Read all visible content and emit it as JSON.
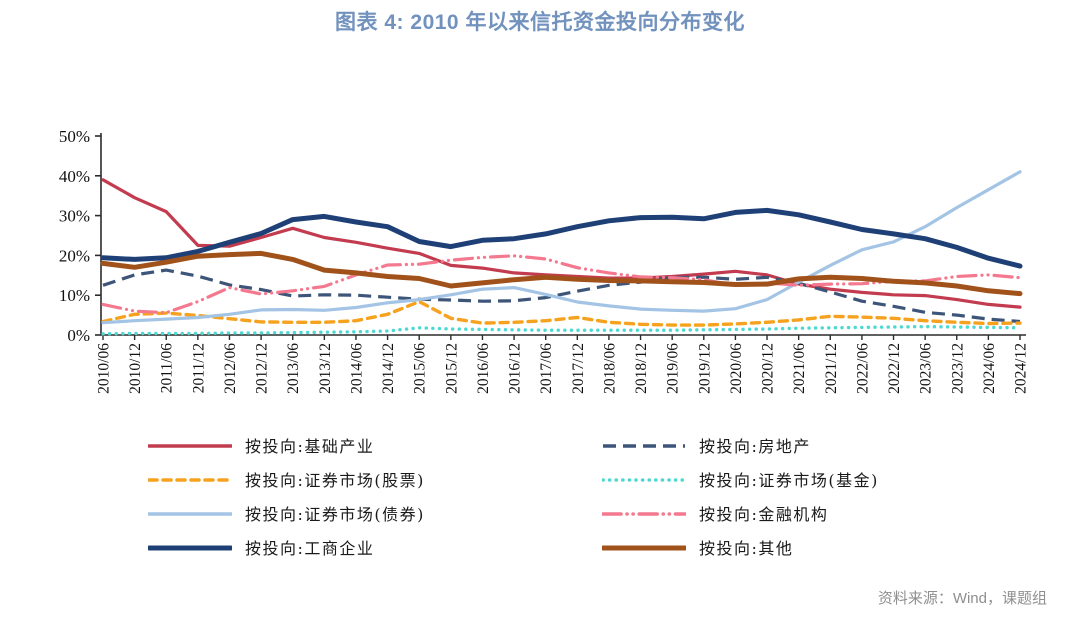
{
  "title": "图表 4: 2010 年以来信托资金投向分布变化",
  "source_note": "资料来源：Wind，课题组",
  "colors": {
    "title": "#7292BE",
    "axis": "#2b2b2b",
    "tick_text": "#111111",
    "source_text": "#8f8f8f",
    "background": "#ffffff"
  },
  "chart_data": {
    "type": "line",
    "title": "图表 4: 2010 年以来信托资金投向分布变化",
    "xlabel": "",
    "ylabel": "",
    "ylim": [
      0,
      50
    ],
    "yticks": [
      "0%",
      "10%",
      "20%",
      "30%",
      "40%",
      "50%"
    ],
    "grid": false,
    "legend_position": "bottom-two-columns",
    "categories": [
      "2010/06",
      "2010/12",
      "2011/06",
      "2011/12",
      "2012/06",
      "2012/12",
      "2013/06",
      "2013/12",
      "2014/06",
      "2014/12",
      "2015/06",
      "2015/12",
      "2016/06",
      "2016/12",
      "2017/06",
      "2017/12",
      "2018/06",
      "2018/12",
      "2019/06",
      "2019/12",
      "2020/06",
      "2020/12",
      "2021/06",
      "2021/12",
      "2022/06",
      "2022/12",
      "2023/06",
      "2023/12",
      "2024/06",
      "2024/12"
    ],
    "series": [
      {
        "name": "按投向:基础产业",
        "color": "#C23B4E",
        "style": "solid",
        "width": 3.2,
        "dash": "",
        "cap": "round",
        "values": [
          39.0,
          34.5,
          31.0,
          22.5,
          22.3,
          24.5,
          26.8,
          24.5,
          23.3,
          21.8,
          20.5,
          17.5,
          16.8,
          15.6,
          15.1,
          14.7,
          14.3,
          14.3,
          14.7,
          15.3,
          16.0,
          15.1,
          12.8,
          11.5,
          10.7,
          10.1,
          9.9,
          8.9,
          7.7,
          7.0
        ]
      },
      {
        "name": "按投向:房地产",
        "color": "#3D5578",
        "style": "dashed",
        "width": 3.2,
        "dash": "13 7",
        "cap": "butt",
        "values": [
          12.5,
          15.1,
          16.3,
          14.8,
          12.6,
          11.4,
          9.8,
          10.1,
          10.0,
          9.5,
          9.0,
          8.8,
          8.5,
          8.6,
          9.4,
          11.0,
          12.5,
          13.3,
          14.5,
          14.5,
          14.0,
          14.5,
          13.0,
          10.8,
          8.5,
          7.2,
          5.7,
          5.0,
          4.0,
          3.4
        ]
      },
      {
        "name": "按投向:证券市场(股票)",
        "color": "#F6A21F",
        "style": "dashed",
        "width": 3.4,
        "dash": "8 6",
        "cap": "round",
        "values": [
          3.4,
          5.2,
          5.5,
          4.9,
          4.1,
          3.3,
          3.2,
          3.2,
          3.6,
          5.2,
          8.4,
          4.2,
          3.0,
          3.2,
          3.6,
          4.4,
          3.2,
          2.7,
          2.5,
          2.5,
          2.8,
          3.2,
          3.8,
          4.7,
          4.5,
          4.2,
          3.6,
          3.2,
          2.9,
          3.0
        ]
      },
      {
        "name": "按投向:证券市场(基金)",
        "color": "#4ED8D2",
        "style": "dotted",
        "width": 3.4,
        "dash": "0.1 6.5",
        "cap": "round",
        "values": [
          0.3,
          0.4,
          0.4,
          0.4,
          0.5,
          0.5,
          0.6,
          0.7,
          0.8,
          1.0,
          1.8,
          1.5,
          1.4,
          1.3,
          1.2,
          1.2,
          1.2,
          1.2,
          1.2,
          1.3,
          1.4,
          1.5,
          1.7,
          1.8,
          1.9,
          2.0,
          2.1,
          2.0,
          1.9,
          1.8
        ]
      },
      {
        "name": "按投向:证券市场(债券)",
        "color": "#A3C4E4",
        "style": "solid",
        "width": 3.2,
        "dash": "",
        "cap": "round",
        "values": [
          3.1,
          3.6,
          4.0,
          4.4,
          5.2,
          6.3,
          6.4,
          6.2,
          6.9,
          8.1,
          8.9,
          10.1,
          11.5,
          11.9,
          10.2,
          8.3,
          7.3,
          6.5,
          6.2,
          6.0,
          6.6,
          8.9,
          13.3,
          17.5,
          21.4,
          23.4,
          27.2,
          32.0,
          36.5,
          41.0
        ]
      },
      {
        "name": "按投向:金融机构",
        "color": "#F4798F",
        "style": "dashdot",
        "width": 3.2,
        "dash": "18 6 0.1 6 0.1 6",
        "cap": "round",
        "values": [
          7.7,
          6.0,
          5.6,
          8.4,
          11.9,
          10.3,
          11.1,
          12.2,
          15.1,
          17.6,
          17.8,
          18.8,
          19.5,
          19.9,
          19.1,
          16.9,
          15.6,
          14.6,
          14.4,
          13.9,
          12.5,
          13.1,
          12.5,
          12.8,
          12.9,
          13.5,
          13.6,
          14.7,
          15.1,
          14.4
        ]
      },
      {
        "name": "按投向:工商企业",
        "color": "#1F4077",
        "style": "solid",
        "width": 5,
        "dash": "",
        "cap": "round",
        "values": [
          19.4,
          19.0,
          19.4,
          21.0,
          23.3,
          25.5,
          29.0,
          29.8,
          28.4,
          27.2,
          23.5,
          22.2,
          23.8,
          24.2,
          25.4,
          27.2,
          28.7,
          29.5,
          29.6,
          29.2,
          30.8,
          31.3,
          30.2,
          28.4,
          26.5,
          25.4,
          24.2,
          22.0,
          19.3,
          17.3
        ]
      },
      {
        "name": "按投向:其他",
        "color": "#A0521A",
        "style": "solid",
        "width": 5,
        "dash": "",
        "cap": "round",
        "values": [
          18.0,
          17.0,
          18.3,
          19.8,
          20.2,
          20.5,
          19.0,
          16.3,
          15.6,
          14.7,
          14.2,
          12.3,
          13.1,
          13.9,
          14.5,
          14.0,
          13.7,
          13.6,
          13.4,
          13.2,
          12.7,
          12.8,
          14.1,
          14.5,
          14.2,
          13.5,
          13.1,
          12.3,
          11.1,
          10.4
        ]
      }
    ],
    "legend_left_indices": [
      0,
      2,
      4,
      6
    ],
    "legend_right_indices": [
      1,
      3,
      5,
      7
    ]
  }
}
